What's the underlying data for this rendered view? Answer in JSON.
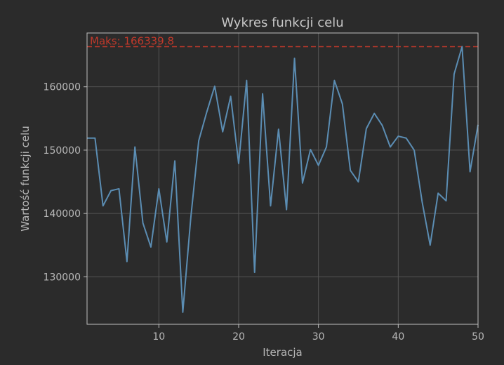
{
  "chart_data": {
    "type": "line",
    "title": "Wykres funkcji celu",
    "xlabel": "Iteracja",
    "ylabel": "Wartość funkcji celu",
    "xlim": [
      1,
      50
    ],
    "ylim": [
      122500,
      168500
    ],
    "xticks": [
      10,
      20,
      30,
      40,
      50
    ],
    "yticks": [
      130000,
      140000,
      150000,
      160000
    ],
    "grid": true,
    "colors": {
      "background": "#2b2b2b",
      "line": "#5b8db3",
      "max_line": "#c0392b",
      "grid": "#555555",
      "frame": "#bfbfbf"
    },
    "series": [
      {
        "x": [
          1,
          2,
          3,
          4,
          5,
          6,
          7,
          8,
          9,
          10,
          11,
          12,
          13,
          14,
          15,
          16,
          17,
          18,
          19,
          20,
          21,
          22,
          23,
          24,
          25,
          26,
          27,
          28,
          29,
          30,
          31,
          32,
          33,
          34,
          35,
          36,
          37,
          38,
          39,
          40,
          41,
          42,
          43,
          44,
          45,
          46,
          47,
          48,
          49,
          50
        ],
        "values": [
          151900,
          151900,
          141200,
          143600,
          143900,
          132400,
          150500,
          138500,
          134700,
          143900,
          135500,
          148300,
          124400,
          139300,
          151500,
          156000,
          160100,
          152900,
          158500,
          147900,
          161000,
          130700,
          158900,
          141200,
          153300,
          140600,
          164500,
          144800,
          150100,
          147600,
          150500,
          161000,
          157300,
          146800,
          145000,
          153400,
          155800,
          153900,
          150500,
          152200,
          151900,
          150000,
          141800,
          135000,
          143200,
          142000,
          162000,
          166339.8,
          146600,
          154000
        ]
      }
    ],
    "annotations": [
      {
        "label": "Maks: 166339.8",
        "y": 166339.8,
        "style": "dashed-horizontal"
      }
    ]
  }
}
